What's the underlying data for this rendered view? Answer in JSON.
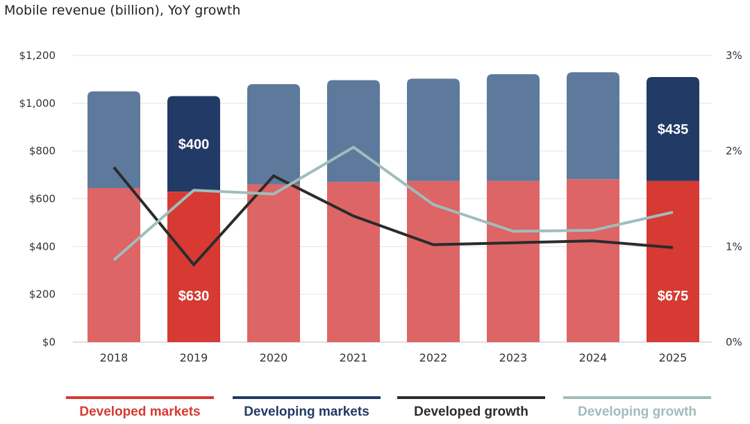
{
  "chart_data": {
    "type": "bar",
    "title": "Mobile revenue (billion), YoY growth",
    "categories": [
      "2018",
      "2019",
      "2020",
      "2021",
      "2022",
      "2023",
      "2024",
      "2025"
    ],
    "y_left_ticks": [
      "$0",
      "$200",
      "$400",
      "$600",
      "$800",
      "$1,000",
      "$1,200"
    ],
    "y_left_lim": [
      0,
      1200
    ],
    "y_right_ticks": [
      "0%",
      "1%",
      "2%",
      "3%"
    ],
    "y_right_lim": [
      0,
      3
    ],
    "grid": true,
    "legend_position": "bottom",
    "series": [
      {
        "name": "Developed markets",
        "kind": "bar",
        "stack": "revenue",
        "color": "#d63a33",
        "muted_color": "#dd6566",
        "values": [
          645,
          630,
          660,
          670,
          675,
          675,
          682,
          675
        ]
      },
      {
        "name": "Developing markets",
        "kind": "bar",
        "stack": "revenue",
        "color": "#223a66",
        "muted_color": "#5d7a9c",
        "values": [
          405,
          400,
          420,
          427,
          428,
          447,
          448,
          435
        ]
      },
      {
        "name": "Developed growth",
        "kind": "line",
        "axis": "right",
        "color": "#2b2b2b",
        "values": [
          1.83,
          0.81,
          1.74,
          1.32,
          1.02,
          1.04,
          1.06,
          0.99
        ]
      },
      {
        "name": "Developing growth",
        "kind": "line",
        "axis": "right",
        "color": "#9fbdbc",
        "values": [
          0.86,
          1.59,
          1.55,
          2.04,
          1.44,
          1.16,
          1.17,
          1.36
        ]
      }
    ],
    "highlighted_categories": [
      "2019",
      "2025"
    ],
    "data_labels": [
      {
        "category": "2019",
        "series": "Developing markets",
        "text": "$400"
      },
      {
        "category": "2019",
        "series": "Developed markets",
        "text": "$630"
      },
      {
        "category": "2025",
        "series": "Developing markets",
        "text": "$435"
      },
      {
        "category": "2025",
        "series": "Developed markets",
        "text": "$675"
      }
    ]
  }
}
